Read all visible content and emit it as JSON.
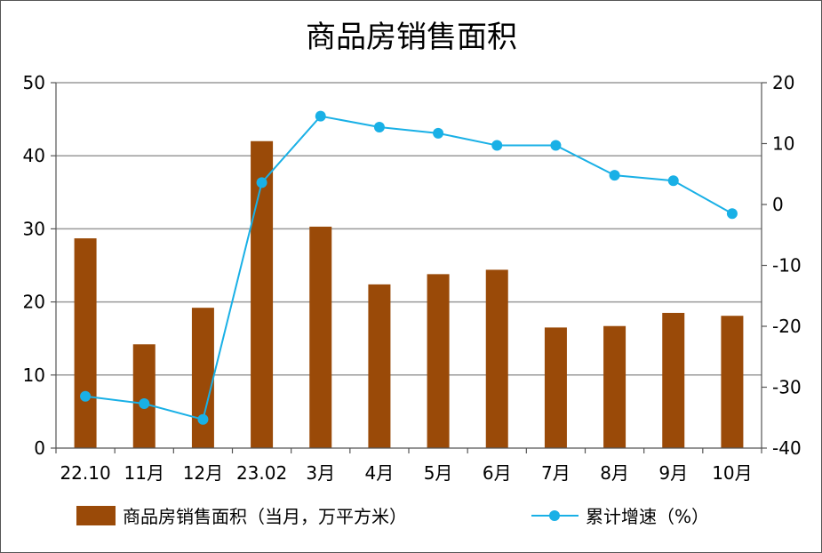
{
  "chart_data": {
    "type": "bar",
    "title": "商品房销售面积",
    "categories": [
      "22.10",
      "11月",
      "12月",
      "23.02",
      "3月",
      "4月",
      "5月",
      "6月",
      "7月",
      "8月",
      "9月",
      "10月"
    ],
    "series": [
      {
        "name": "商品房销售面积（当月，万平方米）",
        "type": "bar",
        "axis": "left",
        "color": "#9a4a08",
        "values": [
          28.7,
          14.2,
          19.2,
          42.0,
          30.3,
          22.4,
          23.8,
          24.4,
          16.5,
          16.7,
          18.5,
          18.1
        ]
      },
      {
        "name": "累计增速（%）",
        "type": "line",
        "axis": "right",
        "color": "#19b0e6",
        "values": [
          -31.5,
          -32.7,
          -35.3,
          3.6,
          14.5,
          12.7,
          11.7,
          9.7,
          9.7,
          4.8,
          3.9,
          -1.5
        ]
      }
    ],
    "y_left": {
      "ylim": [
        0,
        50
      ],
      "ticks": [
        "0",
        "10",
        "20",
        "30",
        "40",
        "50"
      ]
    },
    "y_right": {
      "ylim": [
        -40,
        20
      ],
      "ticks": [
        "-40",
        "-30",
        "-20",
        "-10",
        "0",
        "10",
        "20"
      ]
    },
    "grid": true,
    "legend": "bottom"
  }
}
